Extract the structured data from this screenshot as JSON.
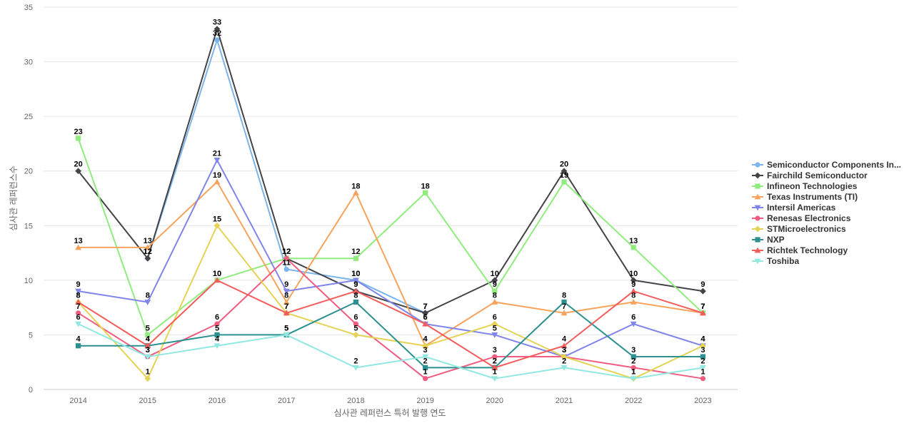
{
  "chart_data": {
    "type": "line",
    "title": "",
    "xlabel": "심사관 레퍼런스 특허 발행 연도",
    "ylabel": "심사관 레퍼런스수",
    "categories": [
      "2014",
      "2015",
      "2016",
      "2017",
      "2018",
      "2019",
      "2020",
      "2021",
      "2022",
      "2023"
    ],
    "ylim": [
      0,
      35
    ],
    "yticks": [
      0,
      5,
      10,
      15,
      20,
      25,
      30,
      35
    ],
    "grid": true,
    "legend_position": "right",
    "series": [
      {
        "name": "Semiconductor Components In...",
        "color": "#7cb5ec",
        "marker": "circle",
        "values": [
          null,
          12,
          32,
          11,
          10,
          7,
          null,
          null,
          null,
          null
        ]
      },
      {
        "name": "Fairchild Semiconductor",
        "color": "#434348",
        "marker": "diamond",
        "values": [
          20,
          12,
          33,
          12,
          9,
          7,
          10,
          20,
          10,
          9
        ]
      },
      {
        "name": "Infineon Technologies",
        "color": "#90ed7d",
        "marker": "square",
        "values": [
          23,
          5,
          10,
          12,
          12,
          18,
          9,
          19,
          13,
          7
        ]
      },
      {
        "name": "Texas Instruments (TI)",
        "color": "#f7a35c",
        "marker": "triangle",
        "values": [
          13,
          13,
          19,
          8,
          18,
          4,
          8,
          7,
          8,
          7
        ]
      },
      {
        "name": "Intersil Americas",
        "color": "#8085e9",
        "marker": "triangle-down",
        "values": [
          9,
          8,
          21,
          9,
          10,
          6,
          5,
          3,
          6,
          4
        ]
      },
      {
        "name": "Renesas Electronics",
        "color": "#f15c80",
        "marker": "circle",
        "values": [
          7,
          3,
          6,
          12,
          6,
          1,
          3,
          3,
          2,
          1
        ]
      },
      {
        "name": "STMicroelectronics",
        "color": "#e4d354",
        "marker": "diamond",
        "values": [
          8,
          1,
          15,
          7,
          5,
          4,
          6,
          3,
          1,
          4
        ]
      },
      {
        "name": "NXP",
        "color": "#2b908f",
        "marker": "square",
        "values": [
          4,
          4,
          5,
          5,
          8,
          2,
          2,
          8,
          3,
          3
        ]
      },
      {
        "name": "Richtek Technology",
        "color": "#f45b5b",
        "marker": "triangle",
        "values": [
          8,
          4,
          10,
          7,
          9,
          6,
          2,
          4,
          9,
          7
        ]
      },
      {
        "name": "Toshiba",
        "color": "#91e8e1",
        "marker": "triangle-down",
        "values": [
          6,
          3,
          4,
          5,
          2,
          3,
          1,
          2,
          1,
          2
        ]
      }
    ]
  }
}
